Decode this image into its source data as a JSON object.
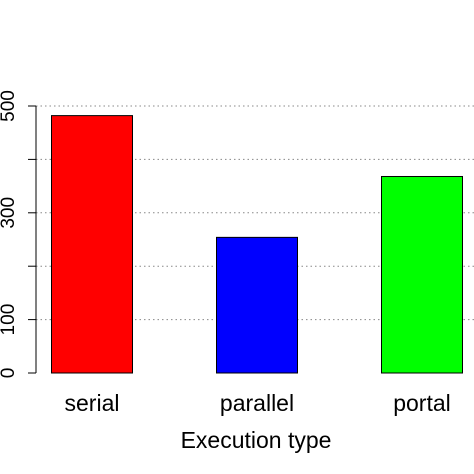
{
  "chart_data": {
    "type": "bar",
    "title": "",
    "xlabel": "Execution type",
    "ylabel": "",
    "categories": [
      "serial",
      "parallel",
      "portal"
    ],
    "values": [
      482,
      254,
      368
    ],
    "colors": [
      "#ff0000",
      "#0000ff",
      "#00ff00"
    ],
    "ylim": [
      0,
      500
    ],
    "yticks": [
      0,
      100,
      300,
      500
    ],
    "gridlines": [
      100,
      200,
      300,
      400,
      500
    ],
    "grid": "horizontal-dotted",
    "legend": "none"
  }
}
